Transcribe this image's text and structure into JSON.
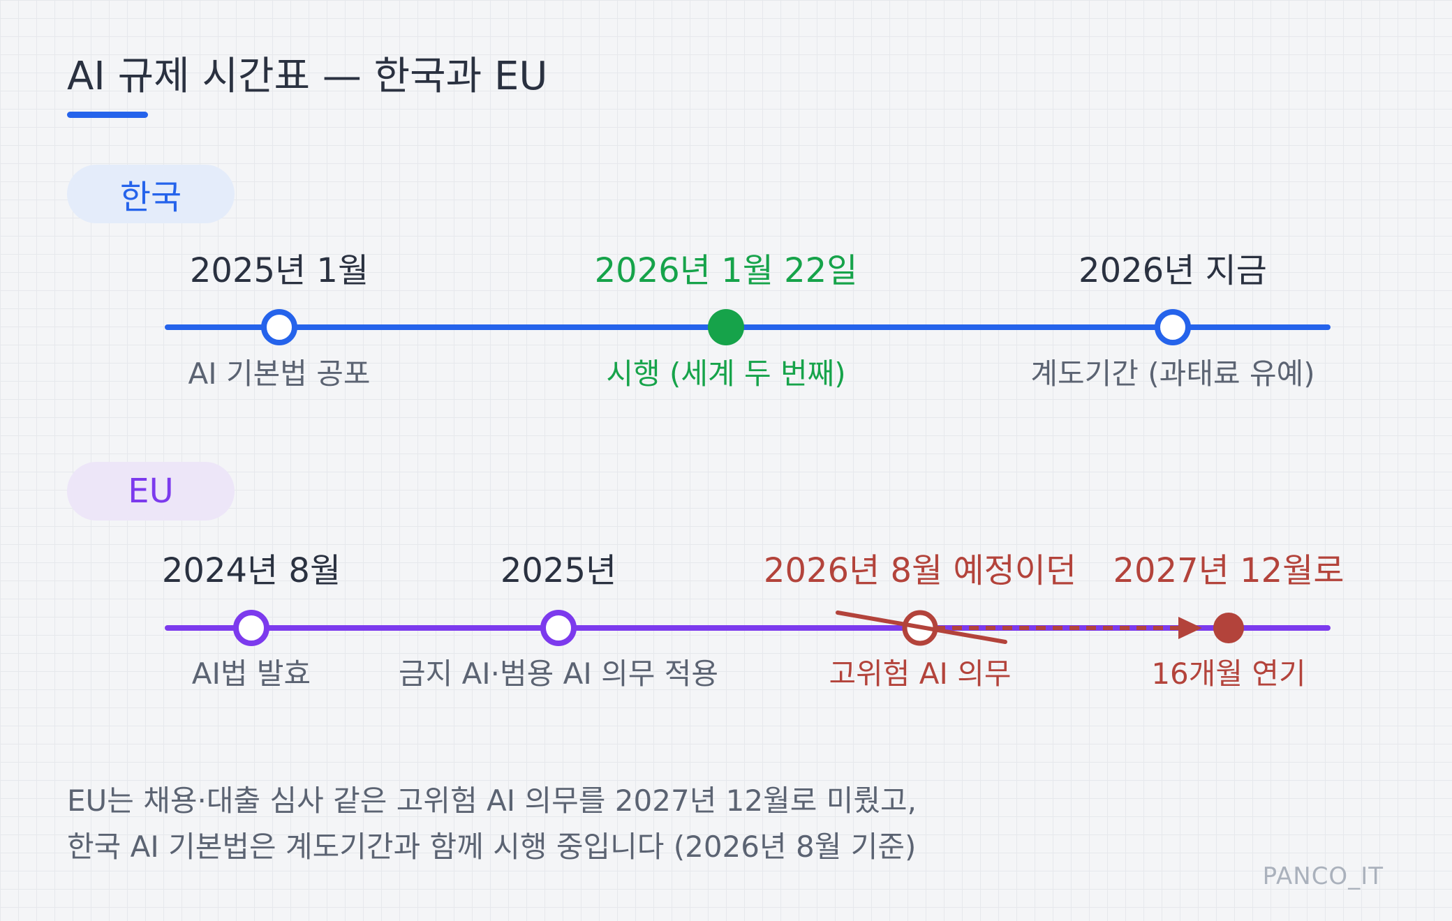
{
  "title": "AI 규제 시간표 — 한국과 EU",
  "colors": {
    "korea": "#2563eb",
    "eu": "#7c3aed",
    "effective": "#16a34a",
    "delay": "#b3433b"
  },
  "korea": {
    "label": "한국",
    "events": [
      {
        "date": "2025년 1월",
        "desc": "AI 기본법 공포"
      },
      {
        "date": "2026년 1월 22일",
        "desc": "시행 (세계 두 번째)"
      },
      {
        "date": "2026년 지금",
        "desc": "계도기간 (과태료 유예)"
      }
    ]
  },
  "eu": {
    "label": "EU",
    "events": [
      {
        "date": "2024년 8월",
        "desc": "AI법 발효"
      },
      {
        "date": "2025년",
        "desc": "금지 AI·범용 AI 의무 적용"
      },
      {
        "date": "2026년 8월 예정이던",
        "desc": "고위험 AI 의무"
      },
      {
        "date": "2027년 12월로",
        "desc": "16개월 연기"
      }
    ]
  },
  "footer": {
    "line1": "EU는 채용·대출 심사 같은 고위험 AI 의무를 2027년 12월로 미뤘고,",
    "line2": "한국 AI 기본법은 계도기간과 함께 시행 중입니다 (2026년 8월 기준)"
  },
  "watermark": "PANCO_IT"
}
